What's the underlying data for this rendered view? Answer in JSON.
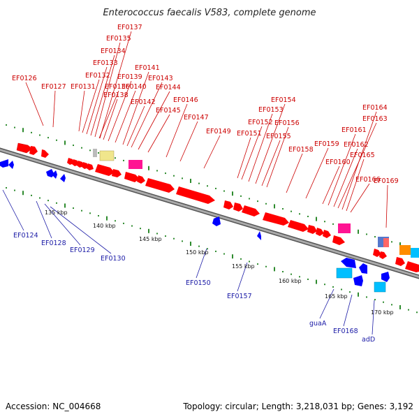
{
  "title": "Enterococcus faecalis V583, complete genome",
  "footer": {
    "accession": "Accession: NC_004668",
    "summary": "Topology: circular; Length: 3,218,031 bp; Genes: 3,192"
  },
  "colors": {
    "forward_gene": "#ff0000",
    "reverse_gene": "#0000ff",
    "label_forward": "#cc0000",
    "label_reverse": "#1a1aa6",
    "backbone": "#888888",
    "tick_major": "#2e8b2e"
  },
  "tick_labels": [
    "135 kbp",
    "140 kbp",
    "145 kbp",
    "150 kbp",
    "155 kbp",
    "160 kbp",
    "165 kbp",
    "170 kbp"
  ],
  "top_labels": [
    "EF0126",
    "EF0127",
    "EF0131",
    "EF0132",
    "EF0133",
    "EF0134",
    "EF0135",
    "EF0137",
    "EF0136",
    "EF0138",
    "EF0139",
    "EF0140",
    "EF0141",
    "EF0142",
    "EF0143",
    "EF0144",
    "EF0145",
    "EF0146",
    "EF0147",
    "EF0149",
    "EF0151",
    "EF0152",
    "EF0153",
    "EF0154",
    "EF0155",
    "EF0156",
    "EF0158",
    "EF0159",
    "EF0160",
    "EF0161",
    "EF0162",
    "EF0163",
    "EF0164",
    "EF0165",
    "EF0166",
    "EF0169"
  ],
  "bottom_labels": [
    "EF0124",
    "EF0128",
    "EF0129",
    "EF0130",
    "EF0150",
    "EF0157",
    "guaA",
    "EF0168",
    "adD"
  ]
}
